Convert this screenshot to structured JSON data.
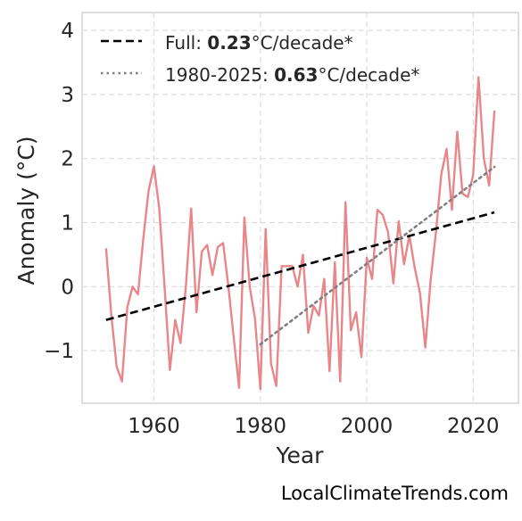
{
  "chart_data": {
    "type": "line",
    "xlabel": "Year",
    "ylabel": "Anomaly (°C)",
    "xlim": [
      1946.5,
      2028.5
    ],
    "ylim": [
      -1.82,
      4.28
    ],
    "xticks": [
      1960,
      1980,
      2000,
      2020
    ],
    "xtick_labels": [
      "1960",
      "1980",
      "2000",
      "2020"
    ],
    "yticks": [
      -1,
      0,
      1,
      2,
      3,
      4
    ],
    "ytick_labels": [
      "−1",
      "0",
      "1",
      "2",
      "3",
      "4"
    ],
    "grid": true,
    "legend_position": "top-left",
    "series": [
      {
        "color": "#e8868a",
        "style": "solid",
        "x": [
          1951,
          1952,
          1953,
          1954,
          1955,
          1956,
          1957,
          1958,
          1959,
          1960,
          1961,
          1962,
          1963,
          1964,
          1965,
          1966,
          1967,
          1968,
          1969,
          1970,
          1971,
          1972,
          1973,
          1974,
          1975,
          1976,
          1977,
          1978,
          1979,
          1980,
          1981,
          1982,
          1983,
          1984,
          1985,
          1986,
          1987,
          1988,
          1989,
          1990,
          1991,
          1992,
          1993,
          1994,
          1995,
          1996,
          1997,
          1998,
          1999,
          2000,
          2001,
          2002,
          2003,
          2004,
          2005,
          2006,
          2007,
          2008,
          2009,
          2010,
          2011,
          2012,
          2013,
          2014,
          2015,
          2016,
          2017,
          2018,
          2019,
          2020,
          2021,
          2022,
          2023,
          2024
        ],
        "values": [
          0.6,
          -0.45,
          -1.25,
          -1.48,
          -0.32,
          0.0,
          -0.12,
          0.75,
          1.5,
          1.88,
          1.22,
          0.0,
          -1.3,
          -0.52,
          -0.88,
          0.0,
          1.22,
          -0.4,
          0.55,
          0.65,
          0.18,
          0.62,
          0.68,
          0.0,
          -0.8,
          -1.58,
          1.08,
          0.0,
          -0.5,
          -1.6,
          0.9,
          -1.2,
          -1.55,
          0.32,
          0.32,
          0.32,
          0.0,
          0.5,
          -0.72,
          -0.3,
          -0.45,
          0.12,
          -1.32,
          0.38,
          -1.48,
          1.32,
          -0.68,
          -0.4,
          -1.1,
          0.45,
          0.12,
          1.2,
          1.12,
          0.85,
          0.05,
          1.02,
          0.35,
          0.8,
          0.3,
          -0.1,
          -0.95,
          0.1,
          0.85,
          1.75,
          2.15,
          1.2,
          2.42,
          1.45,
          1.4,
          1.75,
          3.27,
          2.0,
          1.58,
          2.75
        ]
      },
      {
        "name": "Full",
        "color": "#000000",
        "style": "dashed",
        "x": [
          1951,
          2024
        ],
        "values": [
          -0.52,
          1.16
        ]
      },
      {
        "name": "1980-2025",
        "color": "#808080",
        "style": "dotted",
        "x": [
          1980,
          2024
        ],
        "values": [
          -0.9,
          1.87
        ]
      }
    ],
    "legend": [
      {
        "prefix": "Full: ",
        "bold": "0.23",
        "suffix": "°C/decade*"
      },
      {
        "prefix": "1980-2025: ",
        "bold": "0.63",
        "suffix": "°C/decade*"
      }
    ]
  },
  "footer": "LocalClimateTrends.com"
}
